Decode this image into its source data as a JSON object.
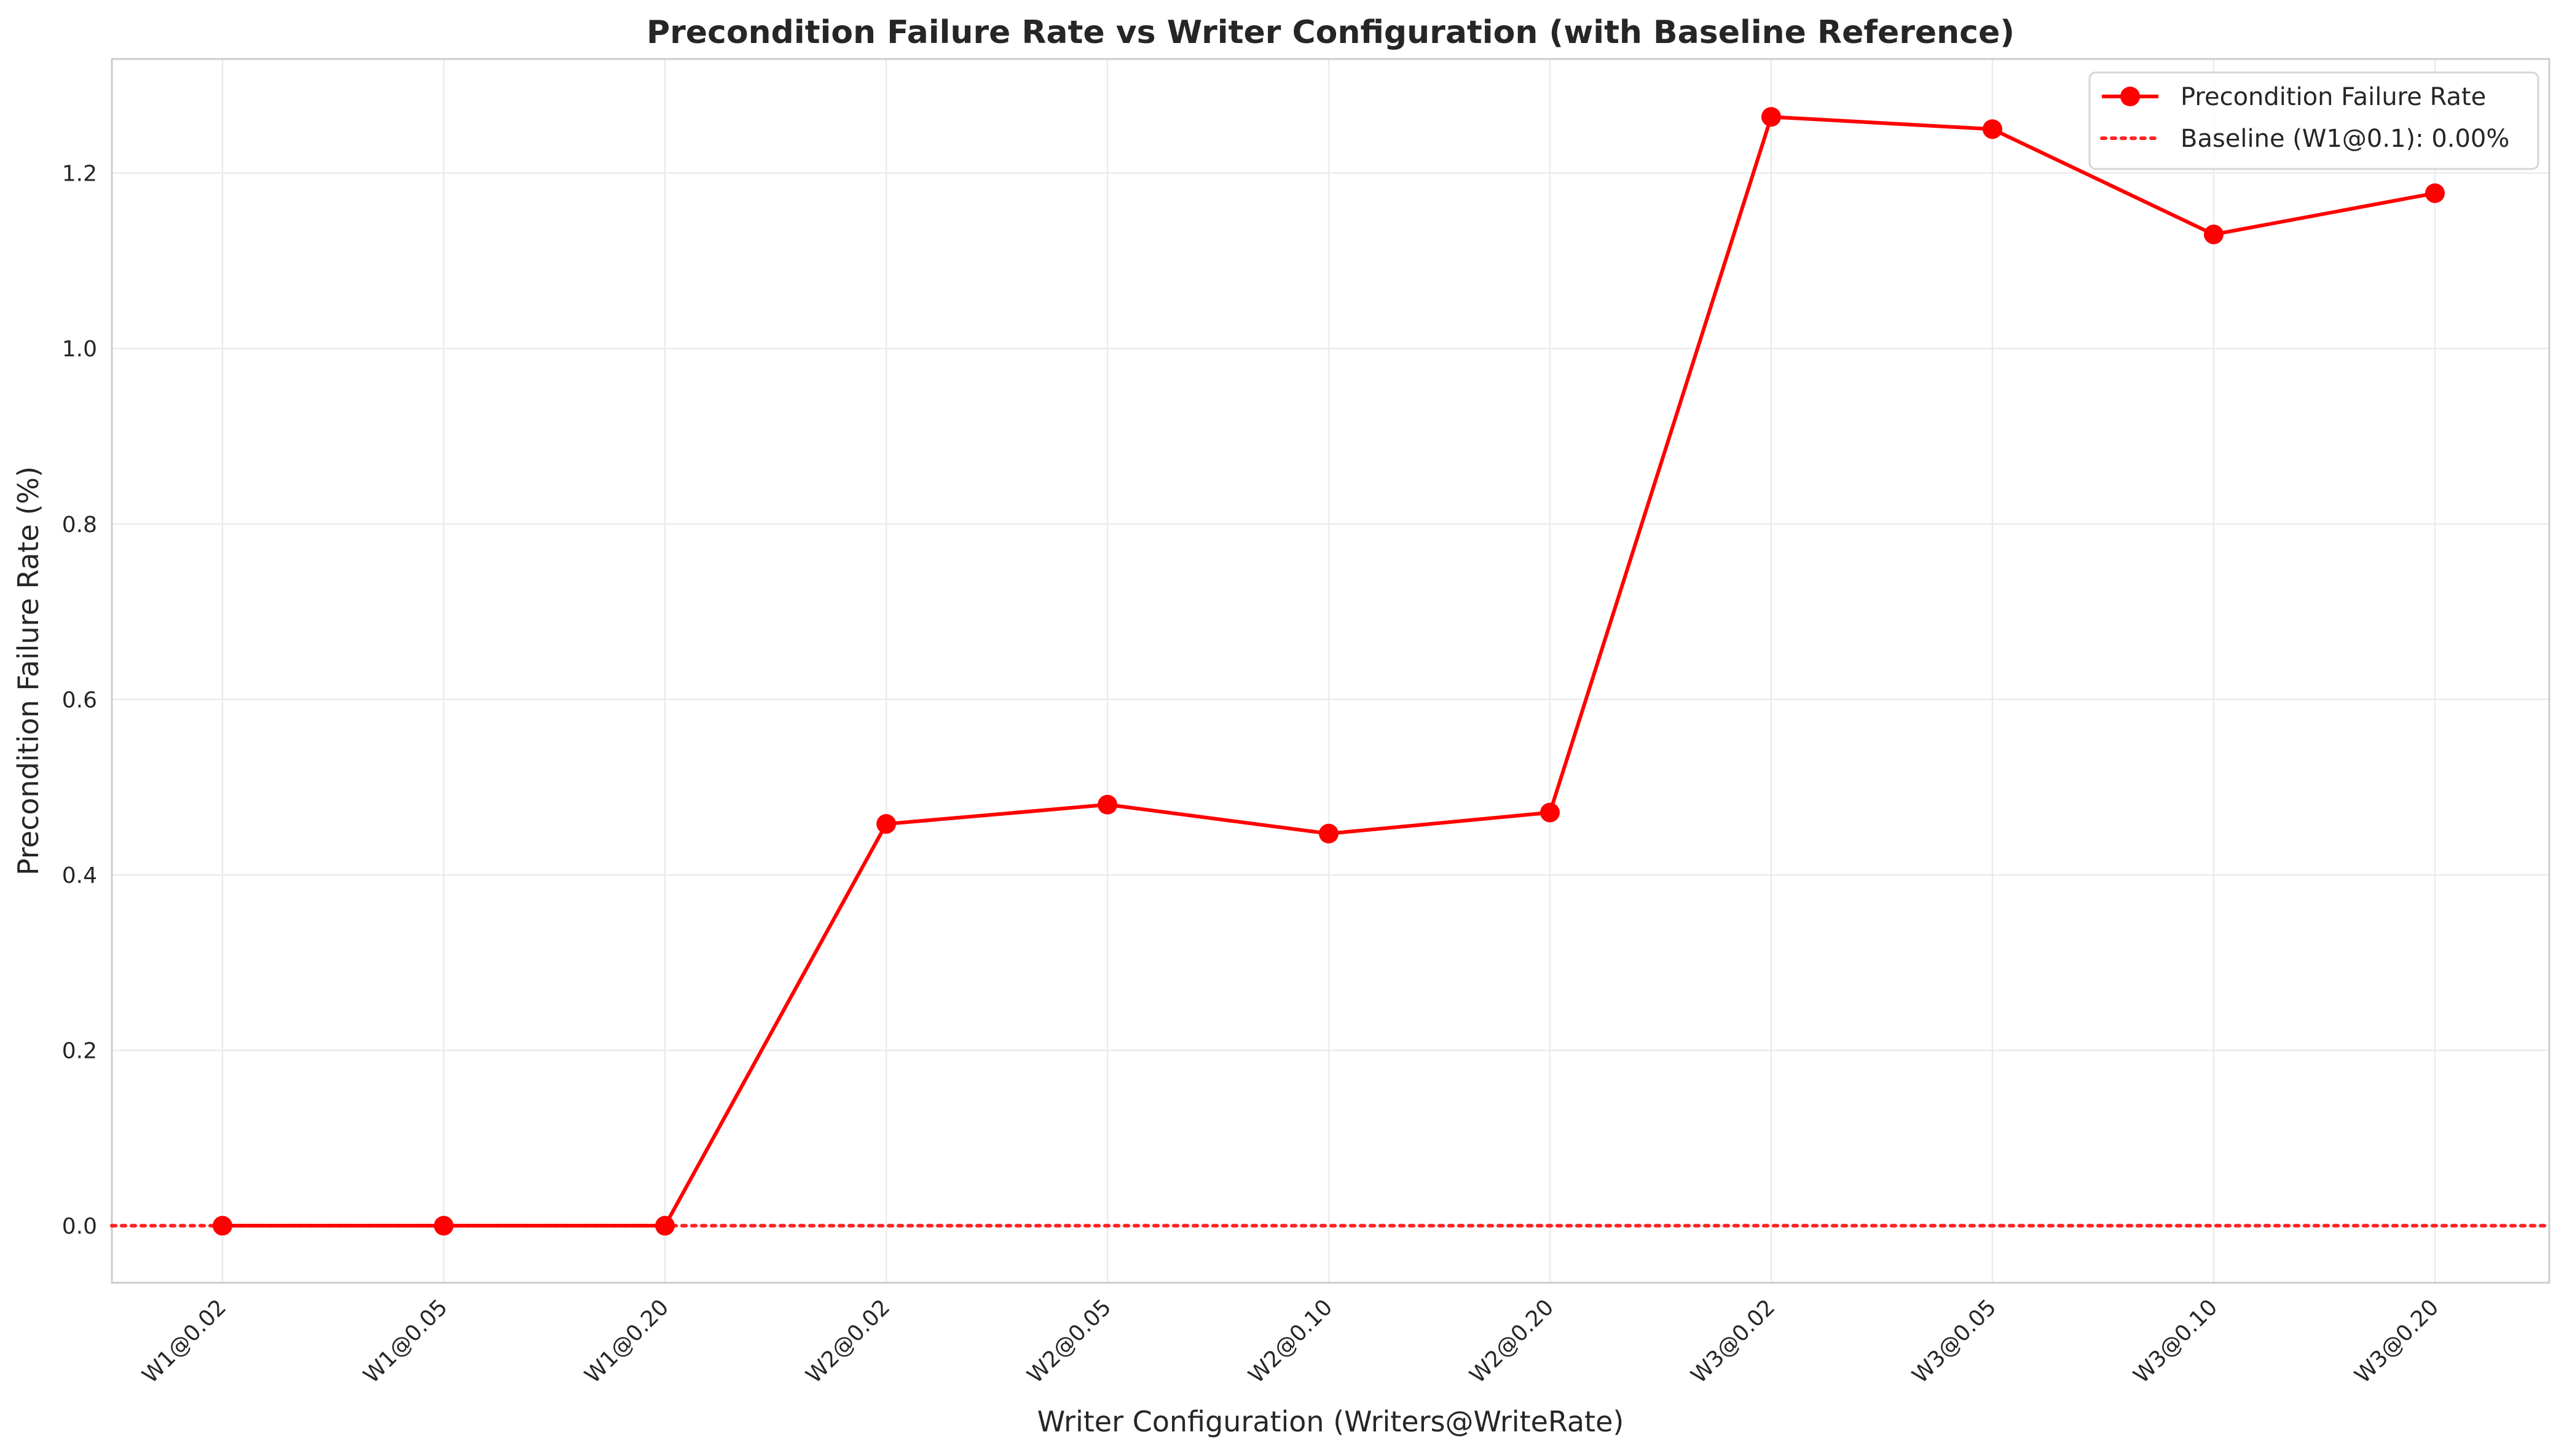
{
  "chart_data": {
    "type": "line",
    "title": "Precondition Failure Rate vs Writer Configuration (with Baseline Reference)",
    "xlabel": "Writer Configuration (Writers@WriteRate)",
    "ylabel": "Precondition Failure Rate (%)",
    "categories": [
      "W1@0.02",
      "W1@0.05",
      "W1@0.20",
      "W2@0.02",
      "W2@0.05",
      "W2@0.10",
      "W2@0.20",
      "W3@0.02",
      "W3@0.05",
      "W3@0.10",
      "W3@0.20"
    ],
    "series": [
      {
        "name": "Precondition Failure Rate",
        "values": [
          0.0,
          0.0,
          0.0,
          0.458,
          0.48,
          0.447,
          0.471,
          1.264,
          1.25,
          1.13,
          1.177
        ],
        "color": "#ff0000"
      }
    ],
    "reference_line": {
      "name": "Baseline (W1@0.1): 0.00%",
      "value": 0.0,
      "style": "dotted",
      "color": "#ff0000"
    },
    "ylim": [
      -0.065,
      1.33
    ],
    "yticks": [
      0.0,
      0.2,
      0.4,
      0.6,
      0.8,
      1.0,
      1.2
    ],
    "grid": true,
    "legend_position": "top-right"
  }
}
